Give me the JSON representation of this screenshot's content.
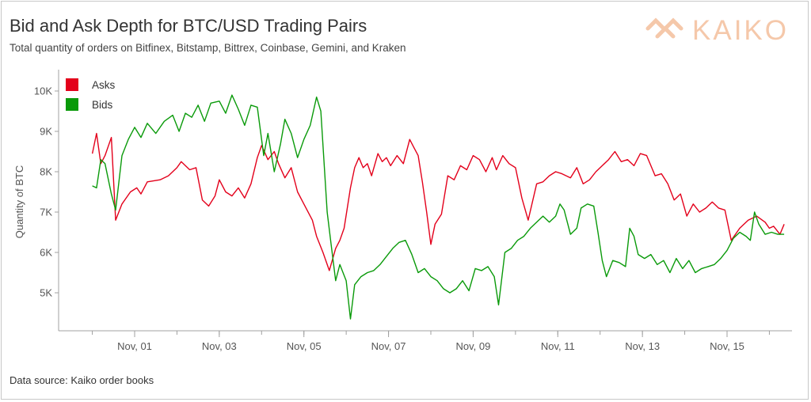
{
  "header": {
    "title": "Bid and Ask Depth for BTC/USD Trading Pairs",
    "subtitle": "Total quantity of orders on Bitfinex, Bitstamp, Bittrex, Coinbase, Gemini, and Kraken",
    "logo_text": "KAIKO",
    "logo_icon": "chain-link-icon"
  },
  "footer": {
    "source": "Data source: Kaiko order books"
  },
  "colors": {
    "asks": "#e3001b",
    "bids": "#0a9a0a",
    "axis": "#a0a0a0",
    "logo": "#f5c8aa"
  },
  "chart_data": {
    "type": "line",
    "title": "Bid and Ask Depth for BTC/USD Trading Pairs",
    "subtitle": "Total quantity of orders on Bitfinex, Bitstamp, Bittrex, Coinbase, Gemini, and Kraken",
    "xlabel": "",
    "ylabel": "Quantity of BTC",
    "x_ticks": [
      "Nov, 01",
      "Nov, 03",
      "Nov, 05",
      "Nov, 07",
      "Nov, 09",
      "Nov, 11",
      "Nov, 13",
      "Nov, 15"
    ],
    "x_range_days": [
      30.15,
      47.1
    ],
    "y_ticks": [
      "5K",
      "6K",
      "7K",
      "8K",
      "9K",
      "10K"
    ],
    "y_tick_values": [
      5000,
      6000,
      7000,
      8000,
      9000,
      10000
    ],
    "ylim": [
      4200,
      10500
    ],
    "grid": false,
    "legend_position": "top-left",
    "series": [
      {
        "name": "Asks",
        "color": "#e3001b",
        "points": [
          [
            31.0,
            8450
          ],
          [
            31.1,
            8950
          ],
          [
            31.2,
            8200
          ],
          [
            31.3,
            8400
          ],
          [
            31.45,
            8850
          ],
          [
            31.55,
            6800
          ],
          [
            31.7,
            7200
          ],
          [
            31.9,
            7500
          ],
          [
            32.05,
            7600
          ],
          [
            32.15,
            7450
          ],
          [
            32.3,
            7750
          ],
          [
            32.6,
            7800
          ],
          [
            32.8,
            7900
          ],
          [
            33.0,
            8100
          ],
          [
            33.1,
            8250
          ],
          [
            33.3,
            8050
          ],
          [
            33.45,
            8100
          ],
          [
            33.6,
            7300
          ],
          [
            33.75,
            7150
          ],
          [
            33.9,
            7400
          ],
          [
            34.0,
            7800
          ],
          [
            34.15,
            7500
          ],
          [
            34.3,
            7400
          ],
          [
            34.45,
            7600
          ],
          [
            34.6,
            7350
          ],
          [
            34.75,
            7700
          ],
          [
            34.9,
            8350
          ],
          [
            35.0,
            8650
          ],
          [
            35.15,
            8300
          ],
          [
            35.3,
            8500
          ],
          [
            35.4,
            8200
          ],
          [
            35.55,
            7850
          ],
          [
            35.7,
            8100
          ],
          [
            35.85,
            7500
          ],
          [
            36.0,
            7200
          ],
          [
            36.2,
            6800
          ],
          [
            36.3,
            6400
          ],
          [
            36.45,
            6000
          ],
          [
            36.6,
            5550
          ],
          [
            36.75,
            6100
          ],
          [
            36.85,
            6300
          ],
          [
            36.95,
            6600
          ],
          [
            37.1,
            7600
          ],
          [
            37.2,
            8100
          ],
          [
            37.3,
            8350
          ],
          [
            37.4,
            8100
          ],
          [
            37.5,
            8200
          ],
          [
            37.6,
            7900
          ],
          [
            37.75,
            8450
          ],
          [
            37.85,
            8250
          ],
          [
            37.95,
            8350
          ],
          [
            38.05,
            8150
          ],
          [
            38.2,
            8400
          ],
          [
            38.35,
            8200
          ],
          [
            38.5,
            8800
          ],
          [
            38.6,
            8600
          ],
          [
            38.7,
            8400
          ],
          [
            38.8,
            7750
          ],
          [
            38.9,
            7000
          ],
          [
            39.0,
            6200
          ],
          [
            39.1,
            6700
          ],
          [
            39.25,
            6950
          ],
          [
            39.4,
            7900
          ],
          [
            39.55,
            7800
          ],
          [
            39.7,
            8150
          ],
          [
            39.85,
            8050
          ],
          [
            40.0,
            8400
          ],
          [
            40.15,
            8300
          ],
          [
            40.3,
            8000
          ],
          [
            40.45,
            8350
          ],
          [
            40.55,
            8050
          ],
          [
            40.7,
            8400
          ],
          [
            40.85,
            8200
          ],
          [
            41.0,
            8100
          ],
          [
            41.15,
            7350
          ],
          [
            41.3,
            6800
          ],
          [
            41.5,
            7700
          ],
          [
            41.65,
            7750
          ],
          [
            41.8,
            7900
          ],
          [
            41.95,
            8000
          ],
          [
            42.1,
            7950
          ],
          [
            42.3,
            7850
          ],
          [
            42.45,
            8100
          ],
          [
            42.6,
            7700
          ],
          [
            42.75,
            7800
          ],
          [
            42.9,
            8000
          ],
          [
            43.05,
            8150
          ],
          [
            43.2,
            8300
          ],
          [
            43.35,
            8500
          ],
          [
            43.5,
            8250
          ],
          [
            43.65,
            8300
          ],
          [
            43.8,
            8150
          ],
          [
            43.95,
            8450
          ],
          [
            44.1,
            8400
          ],
          [
            44.3,
            7900
          ],
          [
            44.45,
            7950
          ],
          [
            44.6,
            7700
          ],
          [
            44.75,
            7300
          ],
          [
            44.9,
            7450
          ],
          [
            45.05,
            6900
          ],
          [
            45.2,
            7200
          ],
          [
            45.35,
            7000
          ],
          [
            45.5,
            7100
          ],
          [
            45.65,
            7250
          ],
          [
            45.8,
            7100
          ],
          [
            45.95,
            7050
          ],
          [
            46.1,
            6300
          ],
          [
            46.3,
            6600
          ],
          [
            46.5,
            6800
          ],
          [
            46.7,
            6900
          ],
          [
            46.9,
            6750
          ],
          [
            47.0,
            6600
          ],
          [
            47.1,
            6650
          ],
          [
            47.25,
            6450
          ],
          [
            47.35,
            6700
          ]
        ]
      },
      {
        "name": "Bids",
        "color": "#0a9a0a",
        "points": [
          [
            31.0,
            7650
          ],
          [
            31.1,
            7600
          ],
          [
            31.2,
            8300
          ],
          [
            31.3,
            8200
          ],
          [
            31.45,
            7450
          ],
          [
            31.55,
            7050
          ],
          [
            31.7,
            8400
          ],
          [
            31.85,
            8800
          ],
          [
            32.0,
            9100
          ],
          [
            32.15,
            8850
          ],
          [
            32.3,
            9200
          ],
          [
            32.5,
            8950
          ],
          [
            32.7,
            9250
          ],
          [
            32.9,
            9400
          ],
          [
            33.05,
            9000
          ],
          [
            33.2,
            9450
          ],
          [
            33.35,
            9350
          ],
          [
            33.5,
            9650
          ],
          [
            33.65,
            9250
          ],
          [
            33.8,
            9700
          ],
          [
            34.0,
            9750
          ],
          [
            34.15,
            9450
          ],
          [
            34.3,
            9900
          ],
          [
            34.45,
            9550
          ],
          [
            34.6,
            9150
          ],
          [
            34.75,
            9650
          ],
          [
            34.9,
            9600
          ],
          [
            35.05,
            8400
          ],
          [
            35.15,
            8950
          ],
          [
            35.3,
            8000
          ],
          [
            35.45,
            8700
          ],
          [
            35.55,
            9300
          ],
          [
            35.7,
            8950
          ],
          [
            35.85,
            8350
          ],
          [
            36.0,
            8800
          ],
          [
            36.15,
            9150
          ],
          [
            36.3,
            9850
          ],
          [
            36.4,
            9500
          ],
          [
            36.55,
            7000
          ],
          [
            36.65,
            6150
          ],
          [
            36.75,
            5300
          ],
          [
            36.85,
            5700
          ],
          [
            37.0,
            5300
          ],
          [
            37.1,
            4350
          ],
          [
            37.2,
            5200
          ],
          [
            37.35,
            5400
          ],
          [
            37.5,
            5500
          ],
          [
            37.65,
            5550
          ],
          [
            37.8,
            5700
          ],
          [
            37.95,
            5900
          ],
          [
            38.1,
            6100
          ],
          [
            38.25,
            6250
          ],
          [
            38.4,
            6300
          ],
          [
            38.55,
            5950
          ],
          [
            38.7,
            5500
          ],
          [
            38.85,
            5600
          ],
          [
            39.0,
            5400
          ],
          [
            39.15,
            5300
          ],
          [
            39.3,
            5100
          ],
          [
            39.45,
            5000
          ],
          [
            39.6,
            5100
          ],
          [
            39.75,
            5300
          ],
          [
            39.9,
            5050
          ],
          [
            40.05,
            5600
          ],
          [
            40.2,
            5550
          ],
          [
            40.35,
            5650
          ],
          [
            40.5,
            5400
          ],
          [
            40.6,
            4700
          ],
          [
            40.75,
            6000
          ],
          [
            40.9,
            6100
          ],
          [
            41.05,
            6300
          ],
          [
            41.2,
            6400
          ],
          [
            41.35,
            6600
          ],
          [
            41.5,
            6750
          ],
          [
            41.65,
            6900
          ],
          [
            41.8,
            6750
          ],
          [
            41.95,
            6900
          ],
          [
            42.05,
            7200
          ],
          [
            42.15,
            7050
          ],
          [
            42.3,
            6450
          ],
          [
            42.45,
            6600
          ],
          [
            42.55,
            7100
          ],
          [
            42.7,
            7200
          ],
          [
            42.85,
            7150
          ],
          [
            42.95,
            6500
          ],
          [
            43.05,
            5800
          ],
          [
            43.15,
            5400
          ],
          [
            43.3,
            5800
          ],
          [
            43.45,
            5750
          ],
          [
            43.6,
            5650
          ],
          [
            43.7,
            6600
          ],
          [
            43.8,
            6400
          ],
          [
            43.9,
            5950
          ],
          [
            44.05,
            5850
          ],
          [
            44.2,
            5950
          ],
          [
            44.35,
            5700
          ],
          [
            44.5,
            5800
          ],
          [
            44.65,
            5500
          ],
          [
            44.8,
            5850
          ],
          [
            44.95,
            5600
          ],
          [
            45.1,
            5800
          ],
          [
            45.25,
            5500
          ],
          [
            45.4,
            5600
          ],
          [
            45.55,
            5650
          ],
          [
            45.7,
            5700
          ],
          [
            45.85,
            5850
          ],
          [
            46.0,
            6050
          ],
          [
            46.15,
            6350
          ],
          [
            46.3,
            6500
          ],
          [
            46.45,
            6400
          ],
          [
            46.55,
            6300
          ],
          [
            46.65,
            7000
          ],
          [
            46.75,
            6700
          ],
          [
            46.9,
            6450
          ],
          [
            47.05,
            6500
          ],
          [
            47.2,
            6450
          ],
          [
            47.35,
            6450
          ]
        ]
      }
    ]
  }
}
